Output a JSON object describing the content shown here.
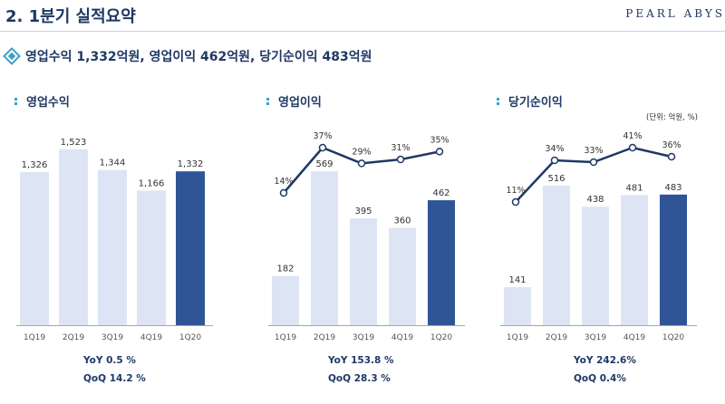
{
  "header": {
    "title": "2. 1분기 실적요약",
    "brand": "PEARL ABYS"
  },
  "summary": "영업수익 1,332억원, 영업이익 462억원, 당기순이익 483억원",
  "unit_note": "(단위: 억원, %)",
  "chart_data": [
    {
      "type": "bar",
      "title": "영업수익",
      "categories": [
        "1Q19",
        "2Q19",
        "3Q19",
        "4Q19",
        "1Q20"
      ],
      "values": [
        1326,
        1523,
        1344,
        1166,
        1332
      ],
      "value_labels": [
        "1,326",
        "1,523",
        "1,344",
        "1,166",
        "1,332"
      ],
      "highlight_index": 4,
      "bar_color": "#dde5f4",
      "highlight_color": "#2f5597",
      "ylim": [
        0,
        1600
      ],
      "yoy": "YoY  0.5 %",
      "qoq": "QoQ  14.2 %"
    },
    {
      "type": "bar",
      "title": "영업이익",
      "categories": [
        "1Q19",
        "2Q19",
        "3Q19",
        "4Q19",
        "1Q20"
      ],
      "values": [
        182,
        569,
        395,
        360,
        462
      ],
      "value_labels": [
        "182",
        "569",
        "395",
        "360",
        "462"
      ],
      "margin_values": [
        14,
        37,
        29,
        31,
        35
      ],
      "margin_labels": [
        "14%",
        "37%",
        "29%",
        "31%",
        "35%"
      ],
      "highlight_index": 4,
      "bar_color": "#dde5f4",
      "highlight_color": "#2f5597",
      "line_color": "#1f3864",
      "ylim": [
        0,
        700
      ],
      "yoy": "YoY  153.8 %",
      "qoq": "QoQ  28.3 %"
    },
    {
      "type": "bar",
      "title": "당기순이익",
      "categories": [
        "1Q19",
        "2Q19",
        "3Q19",
        "4Q19",
        "1Q20"
      ],
      "values": [
        141,
        516,
        438,
        481,
        483
      ],
      "value_labels": [
        "141",
        "516",
        "438",
        "481",
        "483"
      ],
      "margin_values": [
        11,
        34,
        33,
        41,
        36
      ],
      "margin_labels": [
        "11%",
        "34%",
        "33%",
        "41%",
        "36%"
      ],
      "highlight_index": 4,
      "bar_color": "#dde5f4",
      "highlight_color": "#2f5597",
      "line_color": "#1f3864",
      "ylim": [
        0,
        700
      ],
      "yoy": "YoY  242.6%",
      "qoq": "QoQ  0.4%"
    }
  ]
}
